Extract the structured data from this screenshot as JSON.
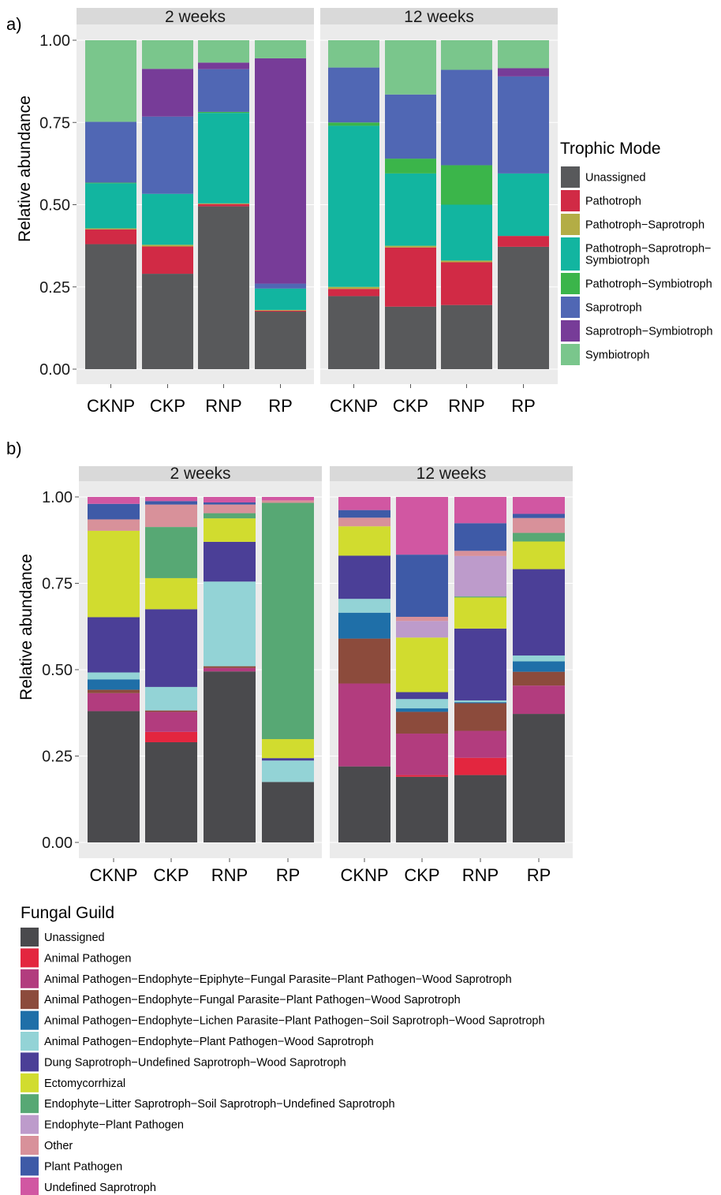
{
  "chart_data": [
    {
      "panel_tag": "a)",
      "type": "bar",
      "stacked": true,
      "ylabel": "Relative abundance",
      "ylim": [
        0,
        1
      ],
      "yticks": [
        "0.00",
        "0.25",
        "0.50",
        "0.75",
        "1.00"
      ],
      "categories": [
        "CKNP",
        "CKP",
        "RNP",
        "RP"
      ],
      "facets": [
        "2 weeks",
        "12 weeks"
      ],
      "legend": {
        "title": "Trophic Mode",
        "items": [
          {
            "label": "Unassigned",
            "color": "#58595b"
          },
          {
            "label": "Pathotroph",
            "color": "#d12a45"
          },
          {
            "label": "Pathotroph−Saprotroph",
            "color": "#b3ad45"
          },
          {
            "label": [
              "Pathotroph−Saprotroph−",
              "Symbiotroph"
            ],
            "color": "#12b5a0"
          },
          {
            "label": "Pathotroph−Symbiotroph",
            "color": "#3bb54a"
          },
          {
            "label": "Saprotroph",
            "color": "#5067b4"
          },
          {
            "label": "Saprotroph−Symbiotroph",
            "color": "#773c98"
          },
          {
            "label": "Symbiotroph",
            "color": "#7ac68c"
          }
        ]
      },
      "bars": {
        "2 weeks": {
          "CKNP": [
            0.38,
            0.045,
            0.003,
            0.137,
            0.002,
            0.185,
            0.0,
            0.248
          ],
          "CKP": [
            0.29,
            0.083,
            0.005,
            0.155,
            0.0,
            0.235,
            0.145,
            0.087
          ],
          "RNP": [
            0.495,
            0.007,
            0.002,
            0.275,
            0.003,
            0.13,
            0.02,
            0.068
          ],
          "RP": [
            0.175,
            0.003,
            0.002,
            0.065,
            0.0,
            0.015,
            0.685,
            0.055
          ]
        },
        "12 weeks": {
          "CKNP": [
            0.222,
            0.022,
            0.006,
            0.49,
            0.01,
            0.167,
            0.0,
            0.083
          ],
          "CKP": [
            0.19,
            0.18,
            0.005,
            0.22,
            0.045,
            0.195,
            0.0,
            0.165
          ],
          "RNP": [
            0.195,
            0.13,
            0.005,
            0.17,
            0.12,
            0.29,
            0.0,
            0.09
          ],
          "RP": [
            0.372,
            0.033,
            0.0,
            0.19,
            0.0,
            0.295,
            0.025,
            0.085
          ]
        }
      }
    },
    {
      "panel_tag": "b)",
      "type": "bar",
      "stacked": true,
      "ylabel": "Relative abundance",
      "ylim": [
        0,
        1
      ],
      "yticks": [
        "0.00",
        "0.25",
        "0.50",
        "0.75",
        "1.00"
      ],
      "categories": [
        "CKNP",
        "CKP",
        "RNP",
        "RP"
      ],
      "facets": [
        "2 weeks",
        "12 weeks"
      ],
      "legend": {
        "title": "Fungal Guild",
        "items": [
          {
            "label": "Unassigned",
            "color": "#4a4a4d"
          },
          {
            "label": "Animal Pathogen",
            "color": "#e3263f"
          },
          {
            "label": "Animal Pathogen−Endophyte−Epiphyte−Fungal Parasite−Plant Pathogen−Wood Saprotroph",
            "color": "#b23c7e"
          },
          {
            "label": "Animal Pathogen−Endophyte−Fungal Parasite−Plant Pathogen−Wood Saprotroph",
            "color": "#8c4b3c"
          },
          {
            "label": "Animal Pathogen−Endophyte−Lichen Parasite−Plant Pathogen−Soil Saprotroph−Wood Saprotroph",
            "color": "#1f6fa8"
          },
          {
            "label": "Animal Pathogen−Endophyte−Plant Pathogen−Wood Saprotroph",
            "color": "#93d3d6"
          },
          {
            "label": "Dung Saprotroph−Undefined Saprotroph−Wood Saprotroph",
            "color": "#4b3f97"
          },
          {
            "label": "Ectomycorrhizal",
            "color": "#d1dc2f"
          },
          {
            "label": "Endophyte−Litter Saprotroph−Soil Saprotroph−Undefined Saprotroph",
            "color": "#57a874"
          },
          {
            "label": "Endophyte−Plant Pathogen",
            "color": "#bd9bcb"
          },
          {
            "label": "Other",
            "color": "#d8919a"
          },
          {
            "label": "Plant Pathogen",
            "color": "#3e5aa7"
          },
          {
            "label": "Undefined Saprotroph",
            "color": "#d157a2"
          }
        ]
      },
      "bars": {
        "2 weeks": {
          "CKNP": [
            0.38,
            0.0,
            0.052,
            0.01,
            0.03,
            0.02,
            0.16,
            0.25,
            0.0,
            0.0,
            0.033,
            0.045,
            0.02
          ],
          "CKP": [
            0.29,
            0.03,
            0.058,
            0.004,
            0.0,
            0.068,
            0.225,
            0.09,
            0.148,
            0.0,
            0.065,
            0.01,
            0.012
          ],
          "RNP": [
            0.495,
            0.0,
            0.01,
            0.005,
            0.0,
            0.245,
            0.115,
            0.068,
            0.015,
            0.0,
            0.025,
            0.006,
            0.016
          ],
          "RP": [
            0.175,
            0.0,
            0.0,
            0.0,
            0.0,
            0.062,
            0.007,
            0.055,
            0.684,
            0.0,
            0.007,
            0.0,
            0.01
          ]
        },
        "12 weeks": {
          "CKNP": [
            0.22,
            0.0,
            0.24,
            0.13,
            0.075,
            0.04,
            0.125,
            0.085,
            0.0,
            0.0,
            0.025,
            0.022,
            0.038
          ],
          "CKP": [
            0.19,
            0.005,
            0.12,
            0.063,
            0.01,
            0.027,
            0.02,
            0.158,
            0.0,
            0.048,
            0.012,
            0.18,
            0.167
          ],
          "RNP": [
            0.195,
            0.05,
            0.078,
            0.08,
            0.003,
            0.005,
            0.208,
            0.09,
            0.003,
            0.117,
            0.015,
            0.08,
            0.076
          ],
          "RP": [
            0.372,
            0.0,
            0.082,
            0.04,
            0.03,
            0.017,
            0.25,
            0.08,
            0.025,
            0.0,
            0.043,
            0.012,
            0.049
          ]
        }
      }
    }
  ]
}
